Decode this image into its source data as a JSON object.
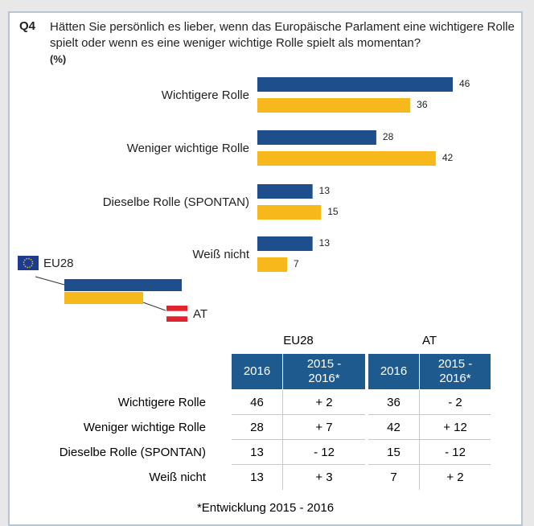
{
  "chart_data": {
    "type": "bar",
    "orientation": "horizontal",
    "label": "Q4",
    "title": "Hätten Sie persönlich es lieber, wenn das Europäische Parlament eine wichtigere Rolle spielt oder wenn es eine weniger wichtige Rolle spielt als momentan?",
    "unit": "(%)",
    "categories": [
      "Wichtigere Rolle",
      "Weniger wichtige Rolle",
      "Dieselbe Rolle (SPONTAN)",
      "Weiß nicht"
    ],
    "series": [
      {
        "name": "EU28",
        "color": "#1f4e8c",
        "values": [
          46,
          28,
          13,
          13
        ]
      },
      {
        "name": "AT",
        "color": "#f7b81b",
        "values": [
          36,
          42,
          15,
          7
        ]
      }
    ]
  },
  "table": {
    "groups": [
      "EU28",
      "AT"
    ],
    "header": [
      "2016",
      "2015 - 2016*",
      "2016",
      "2015 - 2016*"
    ],
    "rows": [
      [
        "Wichtigere Rolle",
        "46",
        "+ 2",
        "36",
        "- 2"
      ],
      [
        "Weniger wichtige Rolle",
        "28",
        "+ 7",
        "42",
        "+ 12"
      ],
      [
        "Dieselbe Rolle (SPONTAN)",
        "13",
        "- 12",
        "15",
        "- 12"
      ],
      [
        "Weiß nicht",
        "13",
        "+ 3",
        "7",
        "+ 2"
      ]
    ]
  },
  "footnote": "*Entwicklung 2015 - 2016"
}
